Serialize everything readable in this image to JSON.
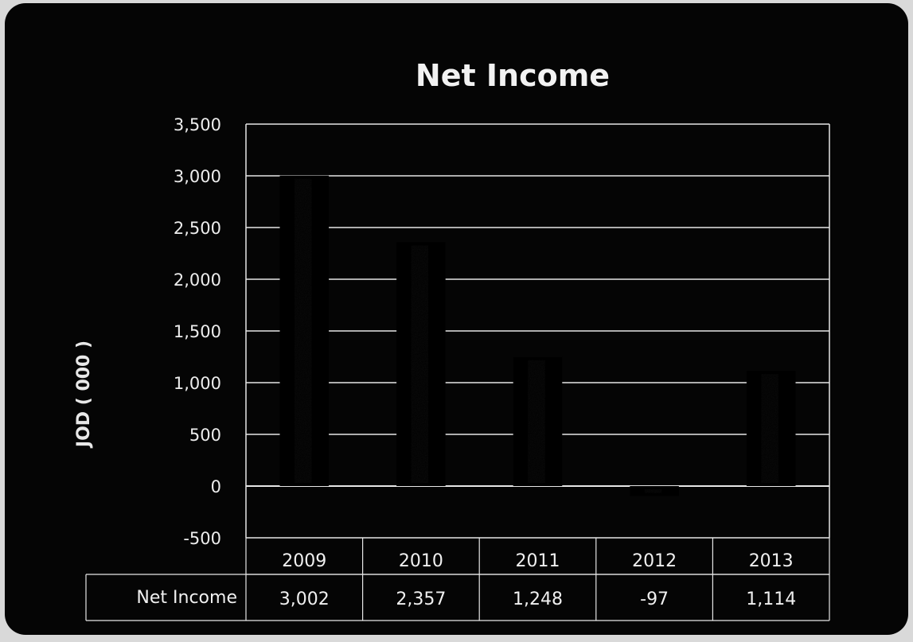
{
  "chart_data": {
    "type": "bar",
    "title": "Net Income",
    "xlabel": "",
    "ylabel": "JOD ( 000 )",
    "ylim": [
      -500,
      3500
    ],
    "yticks": [
      3500,
      3000,
      2500,
      2000,
      1500,
      1000,
      500,
      0,
      -500
    ],
    "ytick_labels": [
      "3,500",
      "3,000",
      "2,500",
      "2,000",
      "1,500",
      "1,000",
      "500",
      "0",
      "-500"
    ],
    "categories": [
      "2009",
      "2010",
      "2011",
      "2012",
      "2013"
    ],
    "series": [
      {
        "name": "Net Income",
        "values": [
          3002,
          2357,
          1248,
          -97,
          1114
        ],
        "value_labels": [
          "3,002",
          "2,357",
          "1,248",
          "-97",
          "1,114"
        ]
      }
    ],
    "grid": true,
    "data_table": true,
    "colors": {
      "background": "#050505",
      "bar": "#000000",
      "bar_highlight": "#d8d8d8",
      "gridline": "#e6e6e6",
      "text": "#f0f0f0"
    }
  }
}
